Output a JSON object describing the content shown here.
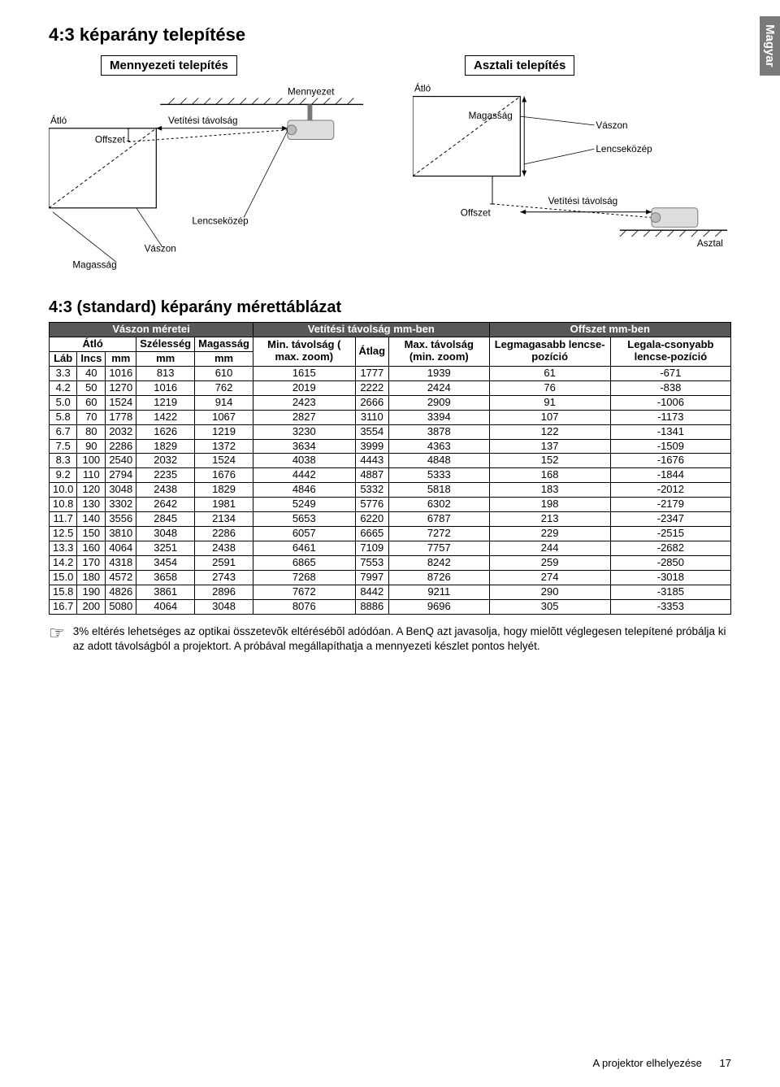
{
  "sideTab": "Magyar",
  "h1": "4:3 képarány telepítése",
  "ceiling": {
    "title": "Mennyezeti telepítés",
    "labels": {
      "diagonal": "Átló",
      "offset": "Offszet",
      "distance": "Vetítési távolság",
      "ceiling": "Mennyezet",
      "lensCenter": "Lencseközép",
      "screen": "Vászon",
      "height": "Magasság"
    }
  },
  "table": {
    "title": "Asztali telepítés",
    "labels": {
      "diagonal": "Átló",
      "offset": "Offszet",
      "distance": "Vetítési távolság",
      "lensCenter": "Lencseközép",
      "screen": "Vászon",
      "height": "Magasság",
      "desk": "Asztal"
    }
  },
  "h2": "4:3 (standard) képarány mérettáblázat",
  "band": {
    "screen": "Vászon méretei",
    "dist": "Vetítési távolság mm-ben",
    "offset": "Offszet mm-ben"
  },
  "hdr": {
    "diag": "Átló",
    "width": "Szélesség",
    "height": "Magasság",
    "min": "Min. távolság ( max. zoom)",
    "avg": "Átlag",
    "max": "Max. távolság (min. zoom)",
    "hi": "Legmagasabb lencse-pozíció",
    "lo": "Legala-csonyabb lencse-pozíció",
    "feet": "Láb",
    "inch": "Incs",
    "mmDiag": "mm",
    "mmW": "mm",
    "mmH": "mm"
  },
  "rows": [
    [
      "3.3",
      "40",
      "1016",
      "813",
      "610",
      "1615",
      "1777",
      "1939",
      "61",
      "-671"
    ],
    [
      "4.2",
      "50",
      "1270",
      "1016",
      "762",
      "2019",
      "2222",
      "2424",
      "76",
      "-838"
    ],
    [
      "5.0",
      "60",
      "1524",
      "1219",
      "914",
      "2423",
      "2666",
      "2909",
      "91",
      "-1006"
    ],
    [
      "5.8",
      "70",
      "1778",
      "1422",
      "1067",
      "2827",
      "3110",
      "3394",
      "107",
      "-1173"
    ],
    [
      "6.7",
      "80",
      "2032",
      "1626",
      "1219",
      "3230",
      "3554",
      "3878",
      "122",
      "-1341"
    ],
    [
      "7.5",
      "90",
      "2286",
      "1829",
      "1372",
      "3634",
      "3999",
      "4363",
      "137",
      "-1509"
    ],
    [
      "8.3",
      "100",
      "2540",
      "2032",
      "1524",
      "4038",
      "4443",
      "4848",
      "152",
      "-1676"
    ],
    [
      "9.2",
      "110",
      "2794",
      "2235",
      "1676",
      "4442",
      "4887",
      "5333",
      "168",
      "-1844"
    ],
    [
      "10.0",
      "120",
      "3048",
      "2438",
      "1829",
      "4846",
      "5332",
      "5818",
      "183",
      "-2012"
    ],
    [
      "10.8",
      "130",
      "3302",
      "2642",
      "1981",
      "5249",
      "5776",
      "6302",
      "198",
      "-2179"
    ],
    [
      "11.7",
      "140",
      "3556",
      "2845",
      "2134",
      "5653",
      "6220",
      "6787",
      "213",
      "-2347"
    ],
    [
      "12.5",
      "150",
      "3810",
      "3048",
      "2286",
      "6057",
      "6665",
      "7272",
      "229",
      "-2515"
    ],
    [
      "13.3",
      "160",
      "4064",
      "3251",
      "2438",
      "6461",
      "7109",
      "7757",
      "244",
      "-2682"
    ],
    [
      "14.2",
      "170",
      "4318",
      "3454",
      "2591",
      "6865",
      "7553",
      "8242",
      "259",
      "-2850"
    ],
    [
      "15.0",
      "180",
      "4572",
      "3658",
      "2743",
      "7268",
      "7997",
      "8726",
      "274",
      "-3018"
    ],
    [
      "15.8",
      "190",
      "4826",
      "3861",
      "2896",
      "7672",
      "8442",
      "9211",
      "290",
      "-3185"
    ],
    [
      "16.7",
      "200",
      "5080",
      "4064",
      "3048",
      "8076",
      "8886",
      "9696",
      "305",
      "-3353"
    ]
  ],
  "note": "3% eltérés lehetséges az optikai összetevõk eltérésébõl adódóan. A BenQ azt javasolja, hogy mielõtt véglegesen telepítené próbálja ki az adott távolságból a projektort. A próbával megállapíthatja a mennyezeti készlet pontos helyét.",
  "footer": {
    "section": "A projektor elhelyezése",
    "page": "17"
  },
  "colors": {
    "band_bg": "#585858",
    "band_fg": "#ffffff",
    "tab_bg": "#7a7a7a"
  }
}
